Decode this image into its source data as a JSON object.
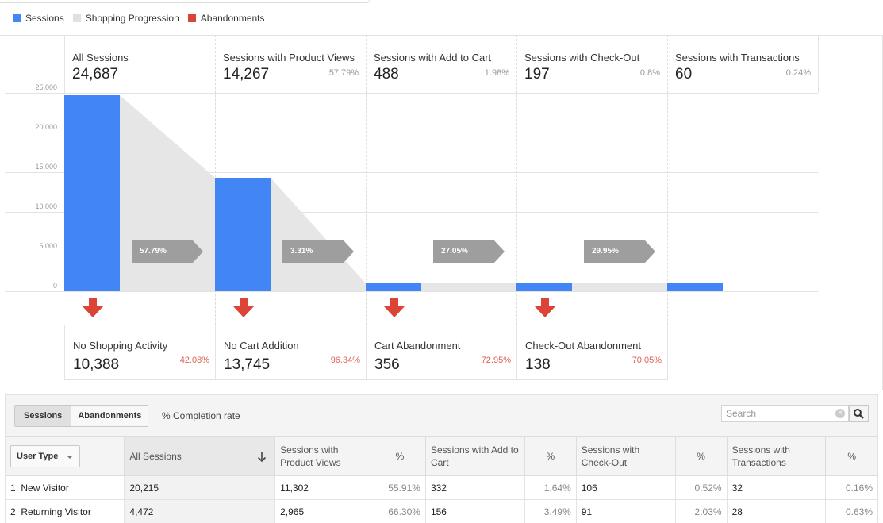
{
  "legend": [
    {
      "label": "Sessions",
      "color": "#4285f4"
    },
    {
      "label": "Shopping Progression",
      "color": "#e0e0e0"
    },
    {
      "label": "Abandonments",
      "color": "#db4437"
    }
  ],
  "chart_data": {
    "type": "bar",
    "title": "",
    "categories": [
      "All Sessions",
      "Sessions with Product Views",
      "Sessions with Add to Cart",
      "Sessions with Check-Out",
      "Sessions with Transactions"
    ],
    "series": [
      {
        "name": "Sessions",
        "values": [
          24687,
          14267,
          488,
          197,
          60
        ]
      }
    ],
    "ylim": [
      0,
      25000
    ],
    "yticks": [
      "25,000",
      "20,000",
      "15,000",
      "10,000",
      "5,000",
      "0"
    ],
    "grid": true,
    "legend_position": "top-left"
  },
  "stages": [
    {
      "label": "All Sessions",
      "value": "24,687",
      "pct": ""
    },
    {
      "label": "Sessions with Product Views",
      "value": "14,267",
      "pct": "57.79%"
    },
    {
      "label": "Sessions with Add to Cart",
      "value": "488",
      "pct": "1.98%"
    },
    {
      "label": "Sessions with Check-Out",
      "value": "197",
      "pct": "0.8%"
    },
    {
      "label": "Sessions with Transactions",
      "value": "60",
      "pct": "0.24%"
    }
  ],
  "progression": [
    "57.79%",
    "3.31%",
    "27.05%",
    "29.95%"
  ],
  "abandonments": [
    {
      "label": "No Shopping Activity",
      "value": "10,388",
      "pct": "42.08%"
    },
    {
      "label": "No Cart Addition",
      "value": "13,745",
      "pct": "96.34%"
    },
    {
      "label": "Cart Abandonment",
      "value": "356",
      "pct": "72.95%"
    },
    {
      "label": "Check-Out Abandonment",
      "value": "138",
      "pct": "70.05%"
    }
  ],
  "table": {
    "toggle": {
      "sessions": "Sessions",
      "abandonments": "Abandonments"
    },
    "completion_label": "% Completion rate",
    "search_placeholder": "Search",
    "dimension": "User Type",
    "headers": {
      "all_sessions": "All Sessions",
      "product_views": "Sessions with Product Views",
      "pct": "%",
      "add_to_cart": "Sessions with Add to Cart",
      "check_out": "Sessions with Check-Out",
      "transactions": "Sessions with Transactions"
    },
    "rows": [
      {
        "index": "1",
        "user_type": "New Visitor",
        "all_sessions": "20,215",
        "product_views": "11,302",
        "product_views_pct": "55.91%",
        "add_to_cart": "332",
        "add_to_cart_pct": "1.64%",
        "check_out": "106",
        "check_out_pct": "0.52%",
        "transactions": "32",
        "transactions_pct": "0.16%"
      },
      {
        "index": "2",
        "user_type": "Returning Visitor",
        "all_sessions": "4,472",
        "product_views": "2,965",
        "product_views_pct": "66.30%",
        "add_to_cart": "156",
        "add_to_cart_pct": "3.49%",
        "check_out": "91",
        "check_out_pct": "2.03%",
        "transactions": "28",
        "transactions_pct": "0.63%"
      }
    ]
  }
}
